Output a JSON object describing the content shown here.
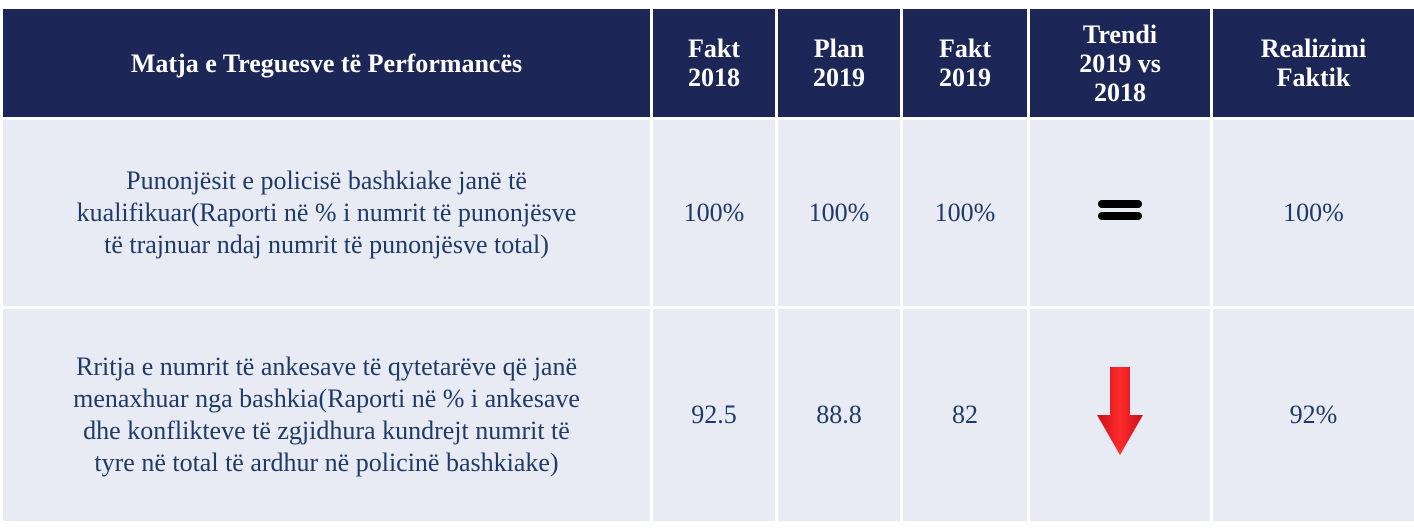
{
  "table": {
    "header": [
      [
        "Matja e Treguesve të Performancës"
      ],
      [
        "Fakt",
        "2018"
      ],
      [
        "Plan",
        "2019"
      ],
      [
        "Fakt",
        "2019"
      ],
      [
        "Trendi",
        "2019 vs",
        "2018"
      ],
      [
        "Realizimi",
        "Faktik"
      ]
    ],
    "rows": [
      [
        [
          "Punonjësit e policisë bashkiake janë të",
          "kualifikuar(Raporti në % i numrit të  punonjësve",
          "të trajnuar ndaj numrit të punonjësve total)"
        ],
        [
          "100%"
        ],
        [
          "100%"
        ],
        [
          "100%"
        ],
        [],
        [
          "100%"
        ]
      ],
      [
        [
          "Rritja e numrit të ankesave të qytetarëve që janë",
          "menaxhuar nga bashkia(Raporti në % i ankesave",
          "dhe konflikteve të zgjidhura kundrejt numrit të",
          "tyre në total të ardhur në policinë bashkiake)"
        ],
        [
          "92.5"
        ],
        [
          "88.8"
        ],
        [
          "82"
        ],
        [],
        [
          "92%"
        ]
      ]
    ]
  }
}
